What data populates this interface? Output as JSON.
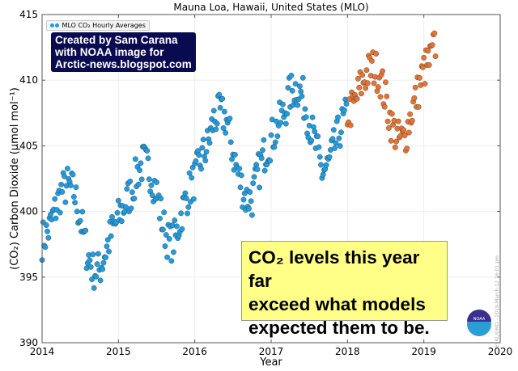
{
  "chart_data": {
    "type": "scatter",
    "title": "Mauna Loa, Hawaii, United States (MLO)",
    "xlabel": "Year",
    "ylabel": "(CO₂) Carbon Dioxide (μmol mol⁻¹)",
    "xlim": [
      2014,
      2020
    ],
    "ylim": [
      390,
      415
    ],
    "xticks": [
      "2014",
      "2015",
      "2016",
      "2017",
      "2018",
      "2019",
      "2020"
    ],
    "yticks": [
      "390",
      "395",
      "400",
      "405",
      "410",
      "415"
    ],
    "grid": true,
    "legend": {
      "label": "MLO CO₂ Hourly Averages",
      "placement": "top-left"
    },
    "colors": {
      "historical": "#1f9de0",
      "recent": "#e8742f"
    },
    "recent_from_year": 2018,
    "series_monthly_approx": {
      "start": 2014.0,
      "step_months": 1,
      "values": [
        397.8,
        398.5,
        400,
        401.5,
        402,
        401.5,
        399.5,
        397,
        395.5,
        395.5,
        397,
        398.5,
        399.5,
        400.5,
        401.5,
        403,
        403.8,
        403,
        401.5,
        399,
        397.5,
        398,
        400,
        401.5,
        402.5,
        404,
        405,
        407,
        407.5,
        407,
        404.5,
        402.5,
        401,
        401,
        403,
        404.5,
        405.5,
        406.5,
        407.5,
        409,
        409.5,
        408.7,
        406.8,
        405,
        403,
        403.5,
        405,
        406.5,
        407.5,
        408,
        409.5,
        410.5,
        411,
        410.5,
        408.5,
        406.5,
        405.5,
        405.5,
        407.5,
        409,
        410.8,
        411.5,
        413
      ]
    },
    "hourly_spread_ppm": 1.5
  },
  "credit": [
    "Created by Sam Carana",
    "with NOAA image for",
    "Arctic-news.blogspot.com"
  ],
  "annotation": [
    "CO₂ levels this year far",
    "exceed what models",
    "expected them to be."
  ],
  "stamp": "ESRL/GMD - 2019-March-12 16:01 pm",
  "logo_text": "NOAA"
}
